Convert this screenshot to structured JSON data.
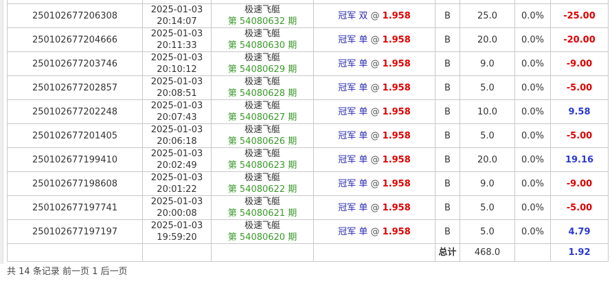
{
  "rows": [
    {
      "id": "250102677206308",
      "date": "2025-01-03",
      "time": "20:14:07",
      "game": "极速飞艇",
      "period": "第 54080632 期",
      "bet_type": "冠军",
      "pick": "双",
      "odds": "1.958",
      "side": "B",
      "amount": "25.0",
      "rebate": "0.0%",
      "result": "-25.00"
    },
    {
      "id": "250102677204666",
      "date": "2025-01-03",
      "time": "20:11:33",
      "game": "极速飞艇",
      "period": "第 54080630 期",
      "bet_type": "冠军",
      "pick": "单",
      "odds": "1.958",
      "side": "B",
      "amount": "20.0",
      "rebate": "0.0%",
      "result": "-20.00"
    },
    {
      "id": "250102677203746",
      "date": "2025-01-03",
      "time": "20:10:12",
      "game": "极速飞艇",
      "period": "第 54080629 期",
      "bet_type": "冠军",
      "pick": "单",
      "odds": "1.958",
      "side": "B",
      "amount": "9.0",
      "rebate": "0.0%",
      "result": "-9.00"
    },
    {
      "id": "250102677202857",
      "date": "2025-01-03",
      "time": "20:08:51",
      "game": "极速飞艇",
      "period": "第 54080628 期",
      "bet_type": "冠军",
      "pick": "单",
      "odds": "1.958",
      "side": "B",
      "amount": "5.0",
      "rebate": "0.0%",
      "result": "-5.00"
    },
    {
      "id": "250102677202248",
      "date": "2025-01-03",
      "time": "20:07:43",
      "game": "极速飞艇",
      "period": "第 54080627 期",
      "bet_type": "冠军",
      "pick": "单",
      "odds": "1.958",
      "side": "B",
      "amount": "10.0",
      "rebate": "0.0%",
      "result": "9.58"
    },
    {
      "id": "250102677201405",
      "date": "2025-01-03",
      "time": "20:06:18",
      "game": "极速飞艇",
      "period": "第 54080626 期",
      "bet_type": "冠军",
      "pick": "单",
      "odds": "1.958",
      "side": "B",
      "amount": "5.0",
      "rebate": "0.0%",
      "result": "-5.00"
    },
    {
      "id": "250102677199410",
      "date": "2025-01-03",
      "time": "20:02:49",
      "game": "极速飞艇",
      "period": "第 54080623 期",
      "bet_type": "冠军",
      "pick": "单",
      "odds": "1.958",
      "side": "B",
      "amount": "20.0",
      "rebate": "0.0%",
      "result": "19.16"
    },
    {
      "id": "250102677198608",
      "date": "2025-01-03",
      "time": "20:01:22",
      "game": "极速飞艇",
      "period": "第 54080622 期",
      "bet_type": "冠军",
      "pick": "单",
      "odds": "1.958",
      "side": "B",
      "amount": "9.0",
      "rebate": "0.0%",
      "result": "-9.00"
    },
    {
      "id": "250102677197741",
      "date": "2025-01-03",
      "time": "20:00:08",
      "game": "极速飞艇",
      "period": "第 54080621 期",
      "bet_type": "冠军",
      "pick": "单",
      "odds": "1.958",
      "side": "B",
      "amount": "5.0",
      "rebate": "0.0%",
      "result": "-5.00"
    },
    {
      "id": "250102677197197",
      "date": "2025-01-03",
      "time": "19:59:20",
      "game": "极速飞艇",
      "period": "第 54080620 期",
      "bet_type": "冠军",
      "pick": "单",
      "odds": "1.958",
      "side": "B",
      "amount": "5.0",
      "rebate": "0.0%",
      "result": "4.79"
    }
  ],
  "total": {
    "label": "总计",
    "amount": "468.0",
    "result": "1.92"
  },
  "footer": {
    "count_text": "共 14 条记录",
    "prev": "前一页",
    "page": "1",
    "next": "后一页"
  },
  "colors": {
    "loss": "#e00000",
    "win": "#2a3ad0",
    "period": "#3a9a2a",
    "bet": "#2a2ab0"
  }
}
